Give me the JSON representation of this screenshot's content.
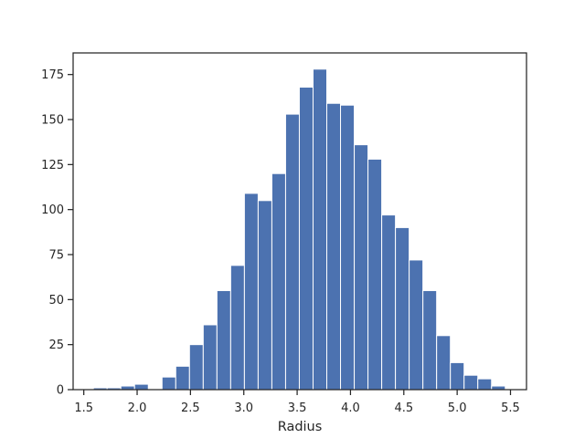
{
  "chart_data": {
    "type": "bar",
    "subtype": "histogram",
    "xlabel": "Radius",
    "ylabel": "",
    "title": "",
    "xlim": [
      1.4,
      5.65
    ],
    "ylim": [
      0,
      187
    ],
    "xticks": [
      1.5,
      2.0,
      2.5,
      3.0,
      3.5,
      4.0,
      4.5,
      5.0,
      5.5
    ],
    "xtick_labels": [
      "1.5",
      "2.0",
      "2.5",
      "3.0",
      "3.5",
      "4.0",
      "4.5",
      "5.0",
      "5.5"
    ],
    "yticks": [
      0,
      25,
      50,
      75,
      100,
      125,
      150,
      175
    ],
    "ytick_labels": [
      "0",
      "25",
      "50",
      "75",
      "100",
      "125",
      "150",
      "175"
    ],
    "bin_start": 1.59,
    "bin_width": 0.1287,
    "counts": [
      1,
      1,
      2,
      3,
      0,
      7,
      13,
      25,
      36,
      55,
      69,
      109,
      105,
      120,
      153,
      168,
      178,
      159,
      158,
      136,
      128,
      97,
      90,
      72,
      55,
      30,
      15,
      8,
      6,
      2
    ],
    "grid": false,
    "legend": "none",
    "colors": {
      "bar": "#4c72b0",
      "bar_edge": "#ffffff",
      "axes": "#262626"
    }
  }
}
